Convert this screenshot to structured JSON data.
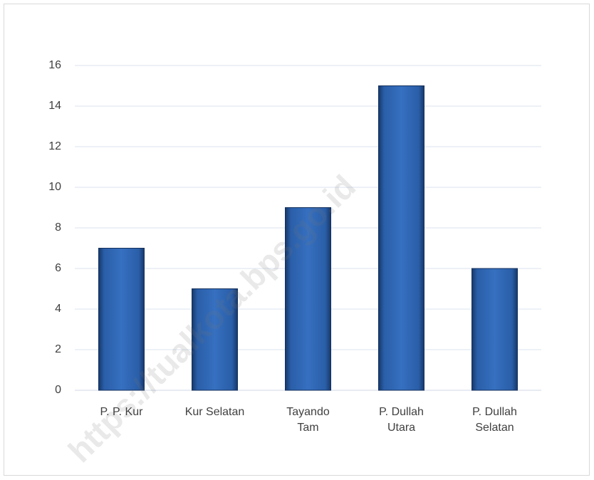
{
  "chart_data": {
    "type": "bar",
    "categories": [
      "P. P. Kur",
      "Kur Selatan",
      "Tayando\nTam",
      "P. Dullah\nUtara",
      "P. Dullah\nSelatan"
    ],
    "values": [
      7,
      5,
      9,
      15,
      6
    ],
    "color": "#2e63ad",
    "ylim": [
      0,
      16
    ],
    "yticks": [
      0,
      2,
      4,
      6,
      8,
      10,
      12,
      14,
      16
    ],
    "grid": true,
    "watermark": "https://tualkota.bps.go.id"
  }
}
